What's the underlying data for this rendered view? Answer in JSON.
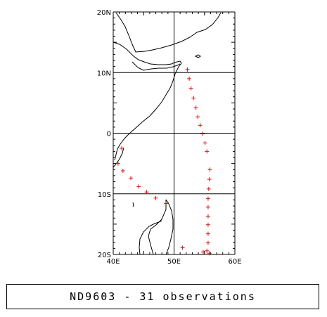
{
  "map": {
    "lon_range": [
      40,
      60
    ],
    "lat_range": [
      -20,
      20
    ],
    "grid_lons": [
      40,
      50,
      60
    ],
    "grid_lats": [
      -20,
      -10,
      0,
      10,
      20
    ],
    "x_tick_labels": [
      "40E",
      "50E",
      "60E"
    ],
    "y_tick_labels": [
      "20N",
      "10N",
      "0",
      "10S",
      "20S"
    ],
    "marker_color": "#e01010",
    "coast_color": "#000000",
    "track_points": [
      [
        52.2,
        10.5
      ],
      [
        52.5,
        9.0
      ],
      [
        52.8,
        7.4
      ],
      [
        53.2,
        5.8
      ],
      [
        53.6,
        4.2
      ],
      [
        53.9,
        2.7
      ],
      [
        54.3,
        1.3
      ],
      [
        54.7,
        -0.1
      ],
      [
        55.1,
        -1.6
      ],
      [
        55.4,
        -3.0
      ],
      [
        55.9,
        -6.0
      ],
      [
        55.8,
        -7.6
      ],
      [
        55.7,
        -9.2
      ],
      [
        55.6,
        -10.8
      ],
      [
        55.6,
        -12.2
      ],
      [
        55.6,
        -13.7
      ],
      [
        55.6,
        -15.1
      ],
      [
        55.6,
        -16.6
      ],
      [
        55.6,
        -18.1
      ],
      [
        55.4,
        -19.4
      ],
      [
        55.8,
        -19.8
      ],
      [
        54.8,
        -19.6
      ],
      [
        51.4,
        -18.9
      ],
      [
        48.7,
        -11.6
      ],
      [
        47.0,
        -10.7
      ],
      [
        45.5,
        -9.7
      ],
      [
        44.2,
        -8.8
      ],
      [
        42.9,
        -7.4
      ],
      [
        41.6,
        -6.2
      ],
      [
        40.8,
        -5.0
      ],
      [
        41.4,
        -2.5
      ]
    ]
  },
  "caption": {
    "text": "ND9603 - 31 observations"
  }
}
